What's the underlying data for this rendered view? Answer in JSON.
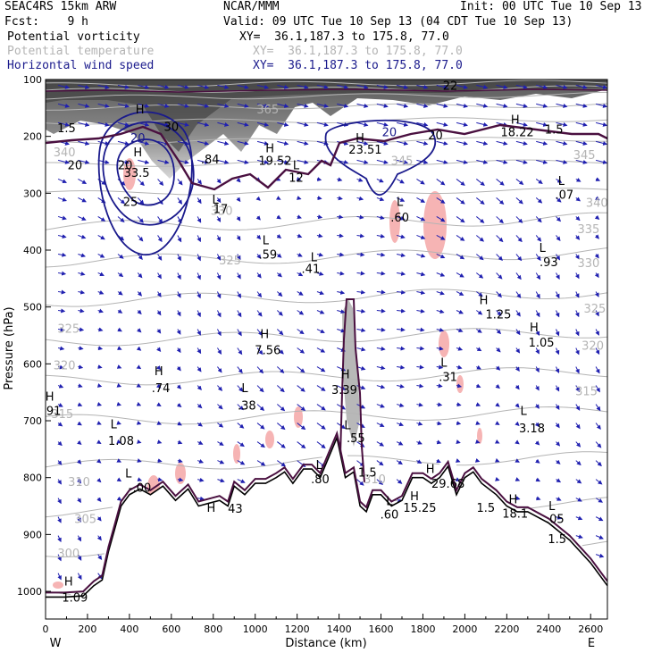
{
  "header": {
    "model": "SEAC4RS 15km ARW",
    "center": "NCAR/MMM",
    "init": "Init: 00 UTC Tue 10 Sep 13",
    "fcst": "Fcst:    9 h",
    "valid": "Valid: 09 UTC Tue 10 Sep 13 (04 CDT Tue 10 Sep 13)"
  },
  "fields": [
    {
      "name": "Potential vorticity",
      "xy": "XY=  36.1,187.3 to 175.8, 77.0",
      "color": "#000000"
    },
    {
      "name": "Potential temperature",
      "xy": "XY=  36.1,187.3 to 175.8, 77.0",
      "color": "#b4b4b4"
    },
    {
      "name": "Horizontal wind speed",
      "xy": "XY=  36.1,187.3 to 175.8, 77.0",
      "color": "#1a1a8c"
    }
  ],
  "chart_data": {
    "type": "cross-section",
    "xlabel": "Distance (km)",
    "ylabel": "Pressure (hPa)",
    "xlim": [
      0,
      2680
    ],
    "ylim": [
      1050,
      100
    ],
    "x_ticks": [
      "0",
      "200",
      "400",
      "600",
      "800",
      "1000",
      "1200",
      "1400",
      "1600",
      "1800",
      "2000",
      "2200",
      "2400",
      "2600"
    ],
    "y_ticks": [
      "100",
      "200",
      "300",
      "400",
      "500",
      "600",
      "700",
      "800",
      "900",
      "1000"
    ],
    "west_label": "W",
    "east_label": "E",
    "terrain": {
      "x": [
        0,
        90,
        180,
        230,
        270,
        300,
        330,
        360,
        400,
        450,
        500,
        560,
        620,
        680,
        730,
        780,
        830,
        870,
        900,
        950,
        1000,
        1050,
        1100,
        1140,
        1180,
        1230,
        1270,
        1310,
        1350,
        1390,
        1430,
        1470,
        1500,
        1530,
        1560,
        1600,
        1650,
        1700,
        1750,
        1800,
        1840,
        1880,
        1920,
        1960,
        2000,
        2040,
        2080,
        2150,
        2200,
        2250,
        2300,
        2400,
        2500,
        2600,
        2680
      ],
      "p": [
        1010,
        1010,
        1008,
        990,
        980,
        930,
        890,
        850,
        830,
        820,
        830,
        815,
        840,
        820,
        850,
        845,
        840,
        850,
        815,
        830,
        810,
        810,
        800,
        790,
        810,
        785,
        785,
        800,
        765,
        730,
        800,
        790,
        850,
        860,
        830,
        830,
        850,
        840,
        800,
        800,
        810,
        800,
        780,
        830,
        800,
        790,
        810,
        830,
        850,
        860,
        860,
        880,
        910,
        950,
        990
      ]
    },
    "pv_labels": [
      {
        "x": 100,
        "p": 193,
        "t": "1.5"
      },
      {
        "x": 140,
        "p": 258,
        "t": "20"
      },
      {
        "x": 380,
        "p": 258,
        "t": "20"
      },
      {
        "x": 435,
        "p": 271,
        "t": "33.5"
      },
      {
        "x": 405,
        "p": 322,
        "t": "25"
      },
      {
        "x": 600,
        "p": 190,
        "t": "30"
      },
      {
        "x": 785,
        "p": 248,
        "t": ".84"
      },
      {
        "x": 1095,
        "p": 250,
        "t": "19.52"
      },
      {
        "x": 1195,
        "p": 280,
        "t": "12"
      },
      {
        "x": 835,
        "p": 335,
        "t": "17"
      },
      {
        "x": 1060,
        "p": 415,
        "t": ".59"
      },
      {
        "x": 1265,
        "p": 440,
        "t": ".41"
      },
      {
        "x": 1525,
        "p": 230,
        "t": "23.51"
      },
      {
        "x": 1690,
        "p": 350,
        "t": ".60"
      },
      {
        "x": 1860,
        "p": 205,
        "t": "20"
      },
      {
        "x": 1930,
        "p": 118,
        "t": "22"
      },
      {
        "x": 2250,
        "p": 200,
        "t": "18.22"
      },
      {
        "x": 2425,
        "p": 195,
        "t": "1.5"
      },
      {
        "x": 2475,
        "p": 310,
        "t": ".07"
      },
      {
        "x": 2400,
        "p": 428,
        "t": ".93"
      },
      {
        "x": 2160,
        "p": 520,
        "t": "1.25"
      },
      {
        "x": 2365,
        "p": 570,
        "t": "1.05"
      },
      {
        "x": 1060,
        "p": 583,
        "t": "7.56"
      },
      {
        "x": 550,
        "p": 650,
        "t": ".74"
      },
      {
        "x": 960,
        "p": 680,
        "t": ".38"
      },
      {
        "x": 1425,
        "p": 653,
        "t": "3.39"
      },
      {
        "x": 1480,
        "p": 738,
        "t": ".55"
      },
      {
        "x": 1920,
        "p": 630,
        "t": ".31"
      },
      {
        "x": 2320,
        "p": 720,
        "t": "3.18"
      },
      {
        "x": 30,
        "p": 690,
        "t": ".91"
      },
      {
        "x": 360,
        "p": 742,
        "t": "1.08"
      },
      {
        "x": 450,
        "p": 825,
        "t": "-.00"
      },
      {
        "x": 1310,
        "p": 810,
        "t": ".80"
      },
      {
        "x": 1535,
        "p": 798,
        "t": "1.5"
      },
      {
        "x": 1920,
        "p": 818,
        "t": "29.68"
      },
      {
        "x": 1785,
        "p": 860,
        "t": "15.25"
      },
      {
        "x": 1640,
        "p": 872,
        "t": ".60"
      },
      {
        "x": 2100,
        "p": 860,
        "t": "1.5"
      },
      {
        "x": 2240,
        "p": 870,
        "t": "18.1"
      },
      {
        "x": 2430,
        "p": 880,
        "t": ".05"
      },
      {
        "x": 2440,
        "p": 915,
        "t": "1.5"
      },
      {
        "x": 905,
        "p": 862,
        "t": "43"
      },
      {
        "x": 140,
        "p": 1018,
        "t": "1.09"
      }
    ],
    "hl_markers": [
      {
        "x": 440,
        "p": 235,
        "t": "H"
      },
      {
        "x": 1070,
        "p": 228,
        "t": "H"
      },
      {
        "x": 1195,
        "p": 258,
        "t": "L"
      },
      {
        "x": 810,
        "p": 318,
        "t": "L"
      },
      {
        "x": 1050,
        "p": 390,
        "t": "L"
      },
      {
        "x": 1280,
        "p": 420,
        "t": "L"
      },
      {
        "x": 1500,
        "p": 210,
        "t": "H"
      },
      {
        "x": 1690,
        "p": 322,
        "t": "L"
      },
      {
        "x": 1910,
        "p": 97,
        "t": "L"
      },
      {
        "x": 2240,
        "p": 178,
        "t": "H"
      },
      {
        "x": 2460,
        "p": 285,
        "t": "L"
      },
      {
        "x": 2370,
        "p": 403,
        "t": "L"
      },
      {
        "x": 2090,
        "p": 495,
        "t": "H"
      },
      {
        "x": 2330,
        "p": 543,
        "t": "H"
      },
      {
        "x": 1045,
        "p": 555,
        "t": "H"
      },
      {
        "x": 540,
        "p": 620,
        "t": "H"
      },
      {
        "x": 950,
        "p": 650,
        "t": "L"
      },
      {
        "x": 1430,
        "p": 625,
        "t": "H"
      },
      {
        "x": 1440,
        "p": 715,
        "t": "L"
      },
      {
        "x": 1900,
        "p": 605,
        "t": "L"
      },
      {
        "x": 2280,
        "p": 690,
        "t": "L"
      },
      {
        "x": 20,
        "p": 665,
        "t": "H"
      },
      {
        "x": 325,
        "p": 713,
        "t": "L"
      },
      {
        "x": 395,
        "p": 800,
        "t": "L"
      },
      {
        "x": 1305,
        "p": 785,
        "t": "L"
      },
      {
        "x": 1835,
        "p": 792,
        "t": "H"
      },
      {
        "x": 1760,
        "p": 840,
        "t": "H"
      },
      {
        "x": 1640,
        "p": 848,
        "t": "L"
      },
      {
        "x": 2230,
        "p": 845,
        "t": "H"
      },
      {
        "x": 2415,
        "p": 857,
        "t": "L"
      },
      {
        "x": 790,
        "p": 860,
        "t": "H"
      },
      {
        "x": 110,
        "p": 990,
        "t": "H"
      },
      {
        "x": 450,
        "p": 160,
        "t": "H"
      }
    ],
    "theta_labels": [
      {
        "x": 1060,
        "p": 160,
        "t": "365"
      },
      {
        "x": 1700,
        "p": 250,
        "t": "345"
      },
      {
        "x": 840,
        "p": 338,
        "t": "330"
      },
      {
        "x": 2630,
        "p": 324,
        "t": "340"
      },
      {
        "x": 2590,
        "p": 370,
        "t": "335"
      },
      {
        "x": 880,
        "p": 425,
        "t": "325"
      },
      {
        "x": 2590,
        "p": 430,
        "t": "330"
      },
      {
        "x": 2620,
        "p": 510,
        "t": "325"
      },
      {
        "x": 110,
        "p": 545,
        "t": "325"
      },
      {
        "x": 2610,
        "p": 575,
        "t": "320"
      },
      {
        "x": 90,
        "p": 610,
        "t": "320"
      },
      {
        "x": 2580,
        "p": 655,
        "t": "315"
      },
      {
        "x": 80,
        "p": 695,
        "t": "315"
      },
      {
        "x": 160,
        "p": 815,
        "t": "310"
      },
      {
        "x": 1570,
        "p": 810,
        "t": "310"
      },
      {
        "x": 190,
        "p": 880,
        "t": "305"
      },
      {
        "x": 110,
        "p": 940,
        "t": "300"
      },
      {
        "x": 90,
        "p": 235,
        "t": "340"
      },
      {
        "x": 2570,
        "p": 240,
        "t": "345"
      }
    ],
    "wind_labels": [
      {
        "x": 440,
        "p": 210,
        "t": "20"
      },
      {
        "x": 1640,
        "p": 200,
        "t": "20"
      }
    ]
  }
}
